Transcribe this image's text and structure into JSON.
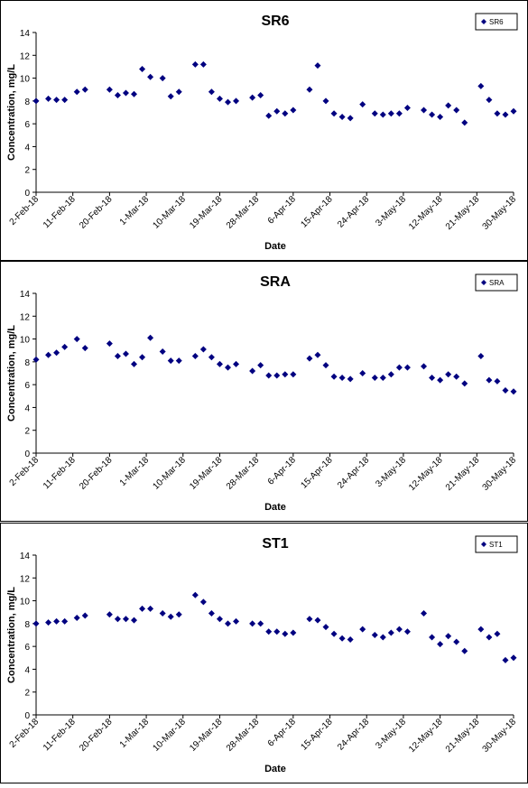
{
  "chart_data": [
    {
      "type": "scatter",
      "title": "SR6",
      "x_label": "Date",
      "y_label": "Concentration, mg/L",
      "x": [
        "2018-02-02",
        "2018-02-05",
        "2018-02-07",
        "2018-02-09",
        "2018-02-12",
        "2018-02-14",
        "2018-02-20",
        "2018-02-22",
        "2018-02-24",
        "2018-02-26",
        "2018-02-28",
        "2018-03-02",
        "2018-03-05",
        "2018-03-07",
        "2018-03-09",
        "2018-03-13",
        "2018-03-15",
        "2018-03-17",
        "2018-03-19",
        "2018-03-21",
        "2018-03-23",
        "2018-03-27",
        "2018-03-29",
        "2018-03-31",
        "2018-04-02",
        "2018-04-04",
        "2018-04-06",
        "2018-04-10",
        "2018-04-12",
        "2018-04-14",
        "2018-04-16",
        "2018-04-18",
        "2018-04-20",
        "2018-04-23",
        "2018-04-26",
        "2018-04-28",
        "2018-04-30",
        "2018-05-02",
        "2018-05-04",
        "2018-05-08",
        "2018-05-10",
        "2018-05-12",
        "2018-05-14",
        "2018-05-16",
        "2018-05-18",
        "2018-05-22",
        "2018-05-24",
        "2018-05-26",
        "2018-05-28",
        "2018-05-30"
      ],
      "series": [
        {
          "name": "SR6",
          "color": "#000080",
          "values": [
            8.0,
            8.2,
            8.1,
            8.1,
            8.8,
            9.0,
            9.0,
            8.5,
            8.7,
            8.6,
            10.8,
            10.1,
            10.0,
            8.4,
            8.8,
            11.2,
            11.2,
            8.8,
            8.2,
            7.9,
            8.0,
            8.3,
            8.5,
            6.7,
            7.1,
            6.9,
            7.2,
            9.0,
            11.1,
            8.0,
            6.9,
            6.6,
            6.5,
            7.7,
            6.9,
            6.8,
            6.9,
            6.9,
            7.4,
            7.2,
            6.8,
            6.6,
            7.6,
            7.2,
            6.1,
            9.3,
            8.1,
            6.9,
            6.8,
            7.1
          ]
        }
      ],
      "xlim": [
        "2018-02-02",
        "2018-05-30"
      ],
      "xticks": [
        {
          "value": "2018-02-02",
          "label": "2-Feb-18"
        },
        {
          "value": "2018-02-11",
          "label": "11-Feb-18"
        },
        {
          "value": "2018-02-20",
          "label": "20-Feb-18"
        },
        {
          "value": "2018-03-01",
          "label": "1-Mar-18"
        },
        {
          "value": "2018-03-10",
          "label": "10-Mar-18"
        },
        {
          "value": "2018-03-19",
          "label": "19-Mar-18"
        },
        {
          "value": "2018-03-28",
          "label": "28-Mar-18"
        },
        {
          "value": "2018-04-06",
          "label": "6-Apr-18"
        },
        {
          "value": "2018-04-15",
          "label": "15-Apr-18"
        },
        {
          "value": "2018-04-24",
          "label": "24-Apr-18"
        },
        {
          "value": "2018-05-03",
          "label": "3-May-18"
        },
        {
          "value": "2018-05-12",
          "label": "12-May-18"
        },
        {
          "value": "2018-05-21",
          "label": "21-May-18"
        },
        {
          "value": "2018-05-30",
          "label": "30-May-18"
        }
      ],
      "ylim": [
        0,
        14
      ],
      "yticks": [
        0,
        2,
        4,
        6,
        8,
        10,
        12,
        14
      ],
      "legend": "upper right"
    },
    {
      "type": "scatter",
      "title": "SRA",
      "x_label": "Date",
      "y_label": "Concentration, mg/L",
      "x": [
        "2018-02-02",
        "2018-02-05",
        "2018-02-07",
        "2018-02-09",
        "2018-02-12",
        "2018-02-14",
        "2018-02-20",
        "2018-02-22",
        "2018-02-24",
        "2018-02-26",
        "2018-02-28",
        "2018-03-02",
        "2018-03-05",
        "2018-03-07",
        "2018-03-09",
        "2018-03-13",
        "2018-03-15",
        "2018-03-17",
        "2018-03-19",
        "2018-03-21",
        "2018-03-23",
        "2018-03-27",
        "2018-03-29",
        "2018-03-31",
        "2018-04-02",
        "2018-04-04",
        "2018-04-06",
        "2018-04-10",
        "2018-04-12",
        "2018-04-14",
        "2018-04-16",
        "2018-04-18",
        "2018-04-20",
        "2018-04-23",
        "2018-04-26",
        "2018-04-28",
        "2018-04-30",
        "2018-05-02",
        "2018-05-04",
        "2018-05-08",
        "2018-05-10",
        "2018-05-12",
        "2018-05-14",
        "2018-05-16",
        "2018-05-18",
        "2018-05-22",
        "2018-05-24",
        "2018-05-26",
        "2018-05-28",
        "2018-05-30"
      ],
      "series": [
        {
          "name": "SRA",
          "color": "#000080",
          "values": [
            8.2,
            8.6,
            8.8,
            9.3,
            10.0,
            9.2,
            9.6,
            8.5,
            8.7,
            7.8,
            8.4,
            10.1,
            8.9,
            8.1,
            8.1,
            8.5,
            9.1,
            8.4,
            7.8,
            7.5,
            7.8,
            7.2,
            7.7,
            6.8,
            6.8,
            6.9,
            6.9,
            8.3,
            8.6,
            7.7,
            6.7,
            6.6,
            6.5,
            7.0,
            6.6,
            6.6,
            6.9,
            7.5,
            7.5,
            7.6,
            6.6,
            6.4,
            6.9,
            6.7,
            6.1,
            8.5,
            6.4,
            6.3,
            5.5,
            5.4
          ]
        }
      ],
      "xlim": [
        "2018-02-02",
        "2018-05-30"
      ],
      "xticks": [
        {
          "value": "2018-02-02",
          "label": "2-Feb-18"
        },
        {
          "value": "2018-02-11",
          "label": "11-Feb-18"
        },
        {
          "value": "2018-02-20",
          "label": "20-Feb-18"
        },
        {
          "value": "2018-03-01",
          "label": "1-Mar-18"
        },
        {
          "value": "2018-03-10",
          "label": "10-Mar-18"
        },
        {
          "value": "2018-03-19",
          "label": "19-Mar-18"
        },
        {
          "value": "2018-03-28",
          "label": "28-Mar-18"
        },
        {
          "value": "2018-04-06",
          "label": "6-Apr-18"
        },
        {
          "value": "2018-04-15",
          "label": "15-Apr-18"
        },
        {
          "value": "2018-04-24",
          "label": "24-Apr-18"
        },
        {
          "value": "2018-05-03",
          "label": "3-May-18"
        },
        {
          "value": "2018-05-12",
          "label": "12-May-18"
        },
        {
          "value": "2018-05-21",
          "label": "21-May-18"
        },
        {
          "value": "2018-05-30",
          "label": "30-May-18"
        }
      ],
      "ylim": [
        0,
        14
      ],
      "yticks": [
        0,
        2,
        4,
        6,
        8,
        10,
        12,
        14
      ],
      "legend": "upper right"
    },
    {
      "type": "scatter",
      "title": "ST1",
      "x_label": "Date",
      "y_label": "Concentration, mg/L",
      "x": [
        "2018-02-02",
        "2018-02-05",
        "2018-02-07",
        "2018-02-09",
        "2018-02-12",
        "2018-02-14",
        "2018-02-20",
        "2018-02-22",
        "2018-02-24",
        "2018-02-26",
        "2018-02-28",
        "2018-03-02",
        "2018-03-05",
        "2018-03-07",
        "2018-03-09",
        "2018-03-13",
        "2018-03-15",
        "2018-03-17",
        "2018-03-19",
        "2018-03-21",
        "2018-03-23",
        "2018-03-27",
        "2018-03-29",
        "2018-03-31",
        "2018-04-02",
        "2018-04-04",
        "2018-04-06",
        "2018-04-10",
        "2018-04-12",
        "2018-04-14",
        "2018-04-16",
        "2018-04-18",
        "2018-04-20",
        "2018-04-23",
        "2018-04-26",
        "2018-04-28",
        "2018-04-30",
        "2018-05-02",
        "2018-05-04",
        "2018-05-08",
        "2018-05-10",
        "2018-05-12",
        "2018-05-14",
        "2018-05-16",
        "2018-05-18",
        "2018-05-22",
        "2018-05-24",
        "2018-05-26",
        "2018-05-28",
        "2018-05-30"
      ],
      "series": [
        {
          "name": "ST1",
          "color": "#000080",
          "values": [
            8.0,
            8.1,
            8.2,
            8.2,
            8.5,
            8.7,
            8.8,
            8.4,
            8.4,
            8.3,
            9.3,
            9.3,
            8.9,
            8.6,
            8.8,
            10.5,
            9.9,
            8.9,
            8.4,
            8.0,
            8.2,
            8.0,
            8.0,
            7.3,
            7.3,
            7.1,
            7.2,
            8.4,
            8.3,
            7.7,
            7.1,
            6.7,
            6.6,
            7.5,
            7.0,
            6.8,
            7.2,
            7.5,
            7.3,
            8.9,
            6.8,
            6.2,
            6.9,
            6.4,
            5.6,
            7.5,
            6.8,
            7.1,
            4.8,
            5.0
          ]
        }
      ],
      "xlim": [
        "2018-02-02",
        "2018-05-30"
      ],
      "xticks": [
        {
          "value": "2018-02-02",
          "label": "2-Feb-18"
        },
        {
          "value": "2018-02-11",
          "label": "11-Feb-18"
        },
        {
          "value": "2018-02-20",
          "label": "20-Feb-18"
        },
        {
          "value": "2018-03-01",
          "label": "1-Mar-18"
        },
        {
          "value": "2018-03-10",
          "label": "10-Mar-18"
        },
        {
          "value": "2018-03-19",
          "label": "19-Mar-18"
        },
        {
          "value": "2018-03-28",
          "label": "28-Mar-18"
        },
        {
          "value": "2018-04-06",
          "label": "6-Apr-18"
        },
        {
          "value": "2018-04-15",
          "label": "15-Apr-18"
        },
        {
          "value": "2018-04-24",
          "label": "24-Apr-18"
        },
        {
          "value": "2018-05-03",
          "label": "3-May-18"
        },
        {
          "value": "2018-05-12",
          "label": "12-May-18"
        },
        {
          "value": "2018-05-21",
          "label": "21-May-18"
        },
        {
          "value": "2018-05-30",
          "label": "30-May-18"
        }
      ],
      "ylim": [
        0,
        14
      ],
      "yticks": [
        0,
        2,
        4,
        6,
        8,
        10,
        12,
        14
      ],
      "legend": "upper right"
    }
  ]
}
